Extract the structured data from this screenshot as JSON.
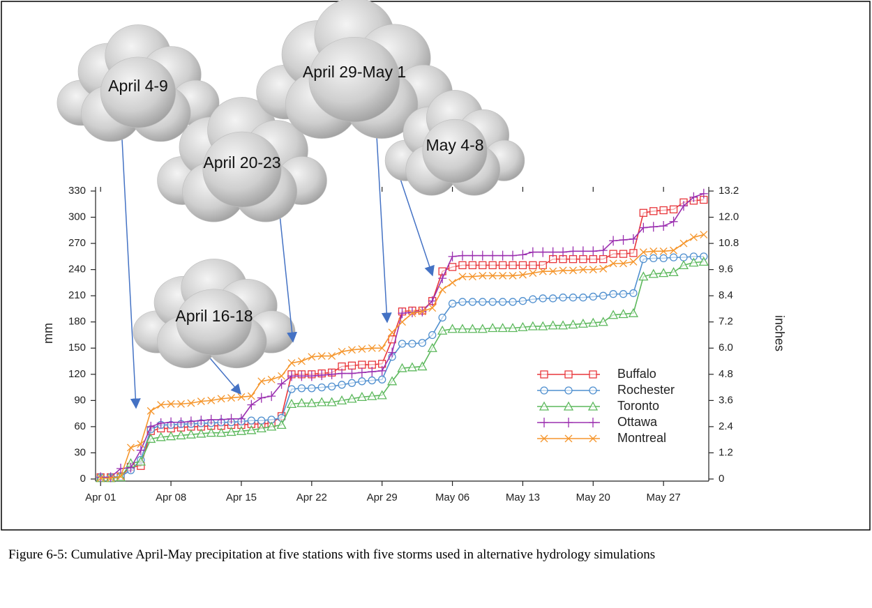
{
  "chart_data": {
    "type": "line",
    "x": [
      0,
      1,
      2,
      3,
      4,
      5,
      6,
      7,
      8,
      9,
      10,
      11,
      12,
      13,
      14,
      15,
      16,
      17,
      18,
      19,
      20,
      21,
      22,
      23,
      24,
      25,
      26,
      27,
      28,
      29,
      30,
      31,
      32,
      33,
      34,
      35,
      36,
      37,
      38,
      39,
      40,
      41,
      42,
      43,
      44,
      45,
      46,
      47,
      48,
      49,
      50,
      51,
      52,
      53,
      54,
      55,
      56,
      57,
      58,
      59,
      60
    ],
    "xlim": [
      -0.5,
      60.5
    ],
    "xticks": [
      {
        "value": 0,
        "label": "Apr 01"
      },
      {
        "value": 7,
        "label": "Apr 08"
      },
      {
        "value": 14,
        "label": "Apr 15"
      },
      {
        "value": 21,
        "label": "Apr 22"
      },
      {
        "value": 28,
        "label": "Apr 29"
      },
      {
        "value": 35,
        "label": "May 06"
      },
      {
        "value": 42,
        "label": "May 13"
      },
      {
        "value": 49,
        "label": "May 20"
      },
      {
        "value": 56,
        "label": "May 27"
      }
    ],
    "ylim": [
      0,
      330
    ],
    "yticks": [
      0,
      30,
      60,
      90,
      120,
      150,
      180,
      210,
      240,
      270,
      300,
      330
    ],
    "y_label": "mm",
    "y2lim": [
      0,
      13.2
    ],
    "y2ticks": [
      0,
      1.2,
      2.4,
      3.6,
      4.8,
      {
        "value": 6,
        "label": "6.0"
      },
      7.2,
      8.4,
      9.6,
      10.8,
      {
        "value": 12,
        "label": "12.0"
      },
      13.2
    ],
    "y2_label": "inches",
    "legend": "lower right",
    "series": [
      {
        "name": "Buffalo",
        "color": "#e8353a",
        "marker": "square",
        "values": [
          2,
          2,
          3,
          14,
          15,
          55,
          58,
          58,
          59,
          60,
          60,
          61,
          61,
          62,
          62,
          63,
          63,
          64,
          72,
          120,
          120,
          120,
          121,
          122,
          129,
          130,
          131,
          131,
          132,
          160,
          192,
          193,
          193,
          204,
          238,
          243,
          245,
          245,
          245,
          245,
          245,
          245,
          245,
          245,
          245,
          252,
          252,
          252,
          252,
          252,
          252,
          258,
          258,
          259,
          305,
          307,
          308,
          309,
          317,
          319,
          320
        ]
      },
      {
        "name": "Rochester",
        "color": "#4f8fcf",
        "marker": "circle",
        "values": [
          2,
          2,
          3,
          10,
          22,
          57,
          62,
          62,
          63,
          63,
          64,
          64,
          65,
          65,
          66,
          67,
          67,
          68,
          70,
          103,
          104,
          104,
          105,
          106,
          108,
          110,
          112,
          113,
          114,
          140,
          155,
          155,
          156,
          165,
          185,
          201,
          203,
          203,
          203,
          203,
          203,
          203,
          204,
          206,
          207,
          207,
          208,
          208,
          208,
          209,
          210,
          212,
          212,
          213,
          252,
          253,
          253,
          254,
          254,
          255,
          255
        ]
      },
      {
        "name": "Toronto",
        "color": "#5cb85c",
        "marker": "triangle",
        "values": [
          1,
          1,
          2,
          18,
          20,
          46,
          48,
          49,
          50,
          51,
          52,
          53,
          53,
          54,
          55,
          56,
          58,
          60,
          62,
          86,
          87,
          87,
          88,
          88,
          90,
          92,
          94,
          95,
          96,
          112,
          127,
          128,
          129,
          150,
          170,
          172,
          172,
          172,
          172,
          173,
          173,
          173,
          174,
          175,
          175,
          176,
          176,
          177,
          178,
          179,
          180,
          188,
          189,
          190,
          232,
          235,
          236,
          237,
          245,
          248,
          249
        ]
      },
      {
        "name": "Ottawa",
        "color": "#9b30b0",
        "marker": "plus",
        "values": [
          2,
          2,
          12,
          13,
          33,
          60,
          64,
          65,
          65,
          66,
          67,
          68,
          68,
          69,
          69,
          85,
          93,
          95,
          109,
          118,
          118,
          118,
          119,
          120,
          121,
          121,
          122,
          123,
          124,
          145,
          190,
          191,
          192,
          204,
          230,
          255,
          256,
          256,
          256,
          256,
          256,
          256,
          257,
          260,
          260,
          260,
          260,
          261,
          261,
          261,
          262,
          273,
          274,
          275,
          288,
          289,
          290,
          295,
          313,
          323,
          327
        ]
      },
      {
        "name": "Montreal",
        "color": "#f5962d",
        "marker": "x",
        "values": [
          1,
          1,
          3,
          36,
          40,
          78,
          85,
          86,
          86,
          87,
          89,
          90,
          92,
          93,
          94,
          95,
          112,
          114,
          118,
          133,
          135,
          140,
          141,
          141,
          146,
          148,
          149,
          150,
          150,
          168,
          180,
          190,
          192,
          196,
          217,
          225,
          232,
          232,
          233,
          233,
          233,
          233,
          234,
          236,
          238,
          238,
          239,
          239,
          240,
          240,
          241,
          247,
          247,
          249,
          260,
          261,
          261,
          262,
          270,
          277,
          280
        ]
      }
    ],
    "annotations": [
      "April 4-9",
      "April 16-18",
      "April 20-23",
      "April 29-May 1",
      "May 4-8"
    ]
  },
  "caption": "Figure 6-5: Cumulative April-May precipitation at five stations with five storms used in alternative hydrology simulations"
}
